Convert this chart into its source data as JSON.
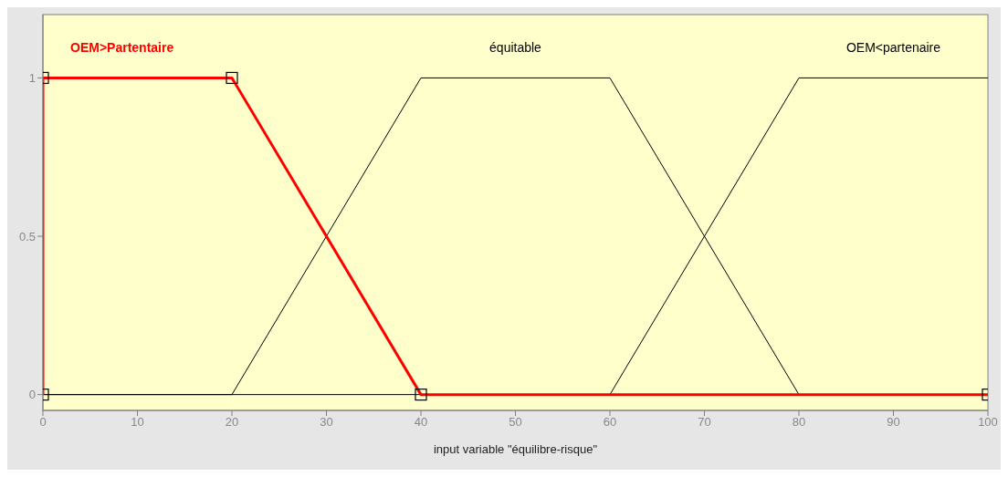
{
  "chart_data": {
    "type": "line",
    "xlabel": "input variable \"équilibre-risque\"",
    "xlim": [
      0,
      100
    ],
    "xticks": [
      0,
      10,
      20,
      30,
      40,
      50,
      60,
      70,
      80,
      90,
      100
    ],
    "ylim": [
      -0.05,
      1.2
    ],
    "yticks": [
      0,
      0.5,
      1
    ],
    "line_style": "solid",
    "series": [
      {
        "name": "équitable",
        "color": "#000000",
        "x": [
          0,
          20,
          40,
          60,
          80,
          100
        ],
        "values": [
          0,
          0,
          1,
          1,
          0,
          0
        ],
        "marker": "none"
      },
      {
        "name": "OEM<partenaire",
        "color": "#000000",
        "x": [
          0,
          60,
          80,
          100
        ],
        "values": [
          0,
          0,
          1,
          1
        ],
        "marker": "none"
      },
      {
        "name": "OEM>Partentaire",
        "color": "#ff0000",
        "x": [
          0,
          0,
          20,
          40,
          100
        ],
        "values": [
          0,
          1,
          1,
          0,
          0
        ],
        "marker": "square"
      }
    ]
  }
}
